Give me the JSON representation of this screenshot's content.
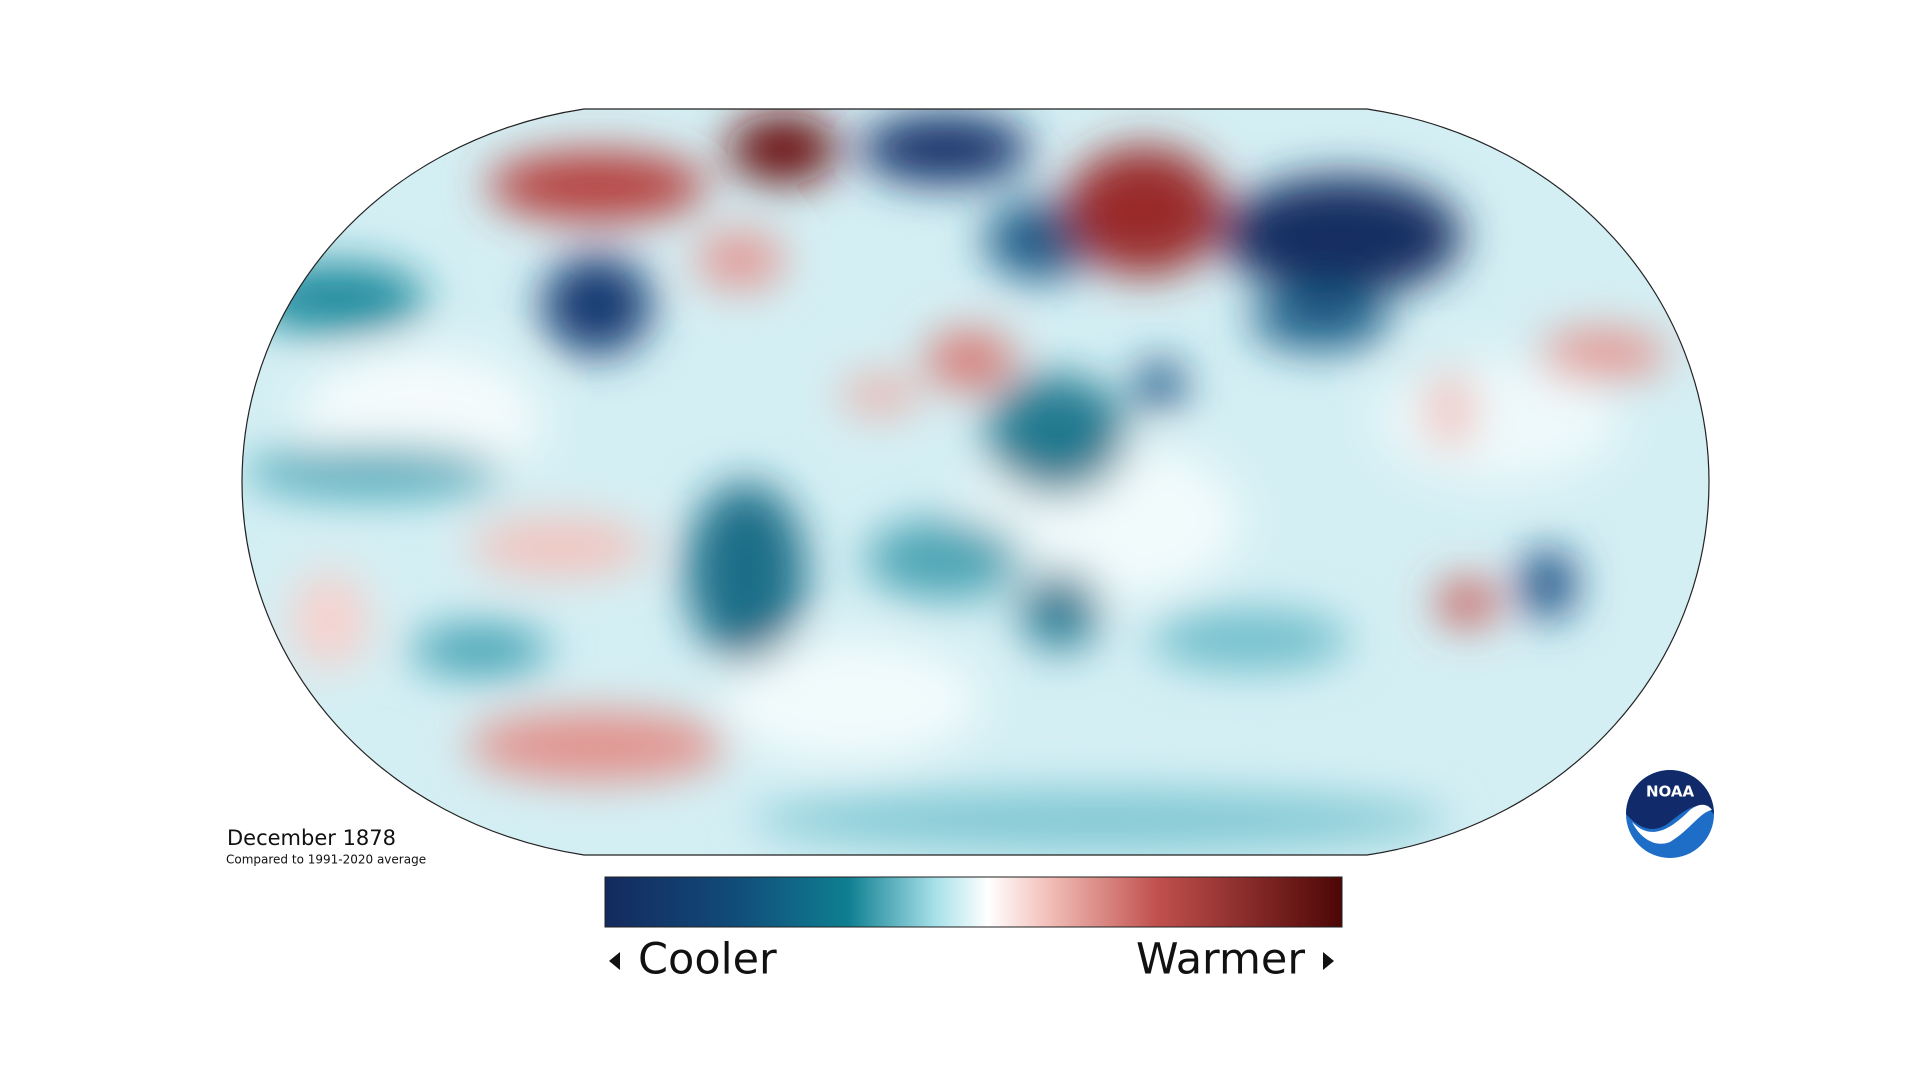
{
  "title": "December 1878",
  "subtitle": "Compared to 1991-2020 average",
  "legend": {
    "low": "Cooler",
    "high": "Warmer"
  },
  "logo": "NOAA"
}
